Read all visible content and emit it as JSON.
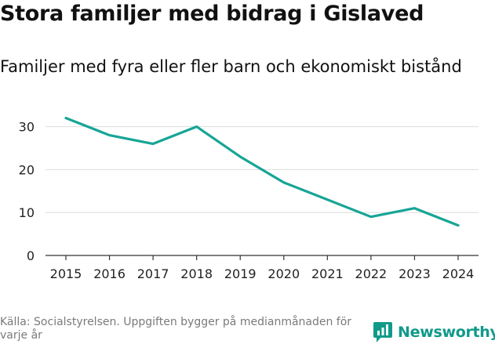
{
  "header": {
    "title": "Stora familjer med bidrag i Gislaved",
    "subtitle": "Familjer med fyra eller fler barn och ekonomiskt bistånd"
  },
  "chart_data": {
    "type": "line",
    "title": "Stora familjer med bidrag i Gislaved",
    "subtitle": "Familjer med fyra eller fler barn och ekonomiskt bistånd",
    "xlabel": "",
    "ylabel": "",
    "x": [
      "2015",
      "2016",
      "2017",
      "2018",
      "2019",
      "2020",
      "2021",
      "2022",
      "2023",
      "2024"
    ],
    "series": [
      {
        "name": "Familjer",
        "values": [
          32,
          28,
          26,
          30,
          23,
          17,
          13,
          9,
          11,
          7
        ]
      }
    ],
    "yticks": [
      "0",
      "10",
      "20",
      "30"
    ],
    "ylim": [
      0,
      35
    ],
    "grid": true,
    "legend": "none",
    "color": "#17a596"
  },
  "footer": {
    "source": "Källa: Socialstyrelsen. Uppgiften bygger på medianmånaden för varje år",
    "brand": "Newsworthy",
    "brand_icon": "newsworthy-logo-icon",
    "brand_color": "#0f9a8a"
  }
}
